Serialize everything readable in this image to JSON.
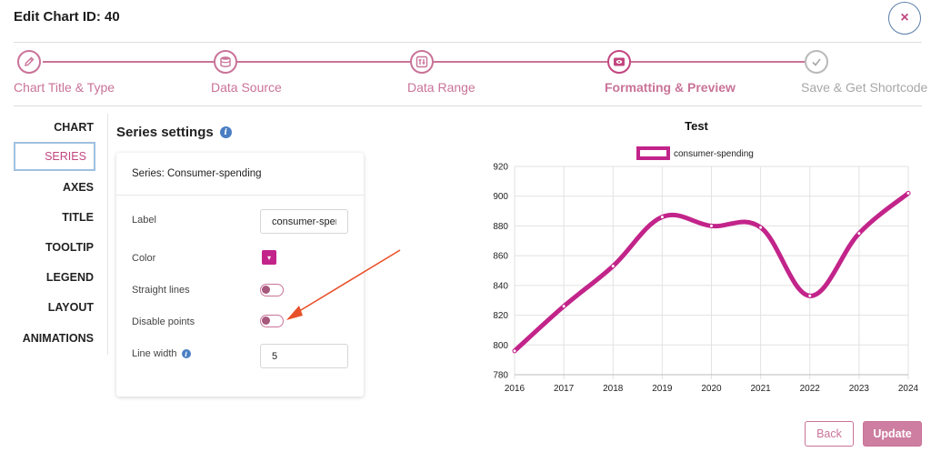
{
  "header": {
    "title": "Edit Chart ID: 40",
    "close_symbol": "×"
  },
  "stepper": {
    "steps": [
      {
        "label": "Chart Title & Type",
        "icon": "pencil-icon",
        "state": "done"
      },
      {
        "label": "Data Source",
        "icon": "database-icon",
        "state": "done"
      },
      {
        "label": "Data Range",
        "icon": "range-icon",
        "state": "done"
      },
      {
        "label": "Formatting & Preview",
        "icon": "preview-icon",
        "state": "active"
      },
      {
        "label": "Save & Get Shortcode",
        "icon": "check-icon",
        "state": "pending"
      }
    ]
  },
  "sidebar": {
    "tabs": [
      "CHART",
      "SERIES",
      "AXES",
      "TITLE",
      "TOOLTIP",
      "LEGEND",
      "LAYOUT",
      "ANIMATIONS"
    ],
    "active_tab": "SERIES"
  },
  "series_settings": {
    "title": "Series settings",
    "info_symbol": "i",
    "panel_header": "Series: Consumer-spending",
    "label_label": "Label",
    "label_value": "consumer-spending",
    "color_label": "Color",
    "color_value": "#c2248a",
    "color_caret": "▾",
    "straight_lines_label": "Straight lines",
    "straight_lines_on": false,
    "disable_points_label": "Disable points",
    "disable_points_on": false,
    "line_width_label": "Line width",
    "line_width_value": "5"
  },
  "chart_data": {
    "type": "line",
    "title": "Test",
    "legend": "top",
    "x": [
      "2016",
      "2017",
      "2018",
      "2019",
      "2020",
      "2021",
      "2022",
      "2023",
      "2024"
    ],
    "series": [
      {
        "name": "consumer-spending",
        "values": [
          796,
          826,
          853,
          886,
          880,
          879,
          833,
          875,
          902
        ],
        "color": "#c2248a"
      }
    ],
    "ylim": [
      780,
      920
    ],
    "yticks": [
      "780",
      "800",
      "820",
      "840",
      "860",
      "880",
      "900",
      "920"
    ],
    "smooth": true,
    "grid": true
  },
  "actions": {
    "back_label": "Back",
    "update_label": "Update"
  },
  "colors": {
    "accent": "#c97398",
    "active_step": "#c2467f",
    "series": "#c2248a",
    "annotation_arrow": "#e8502a"
  }
}
